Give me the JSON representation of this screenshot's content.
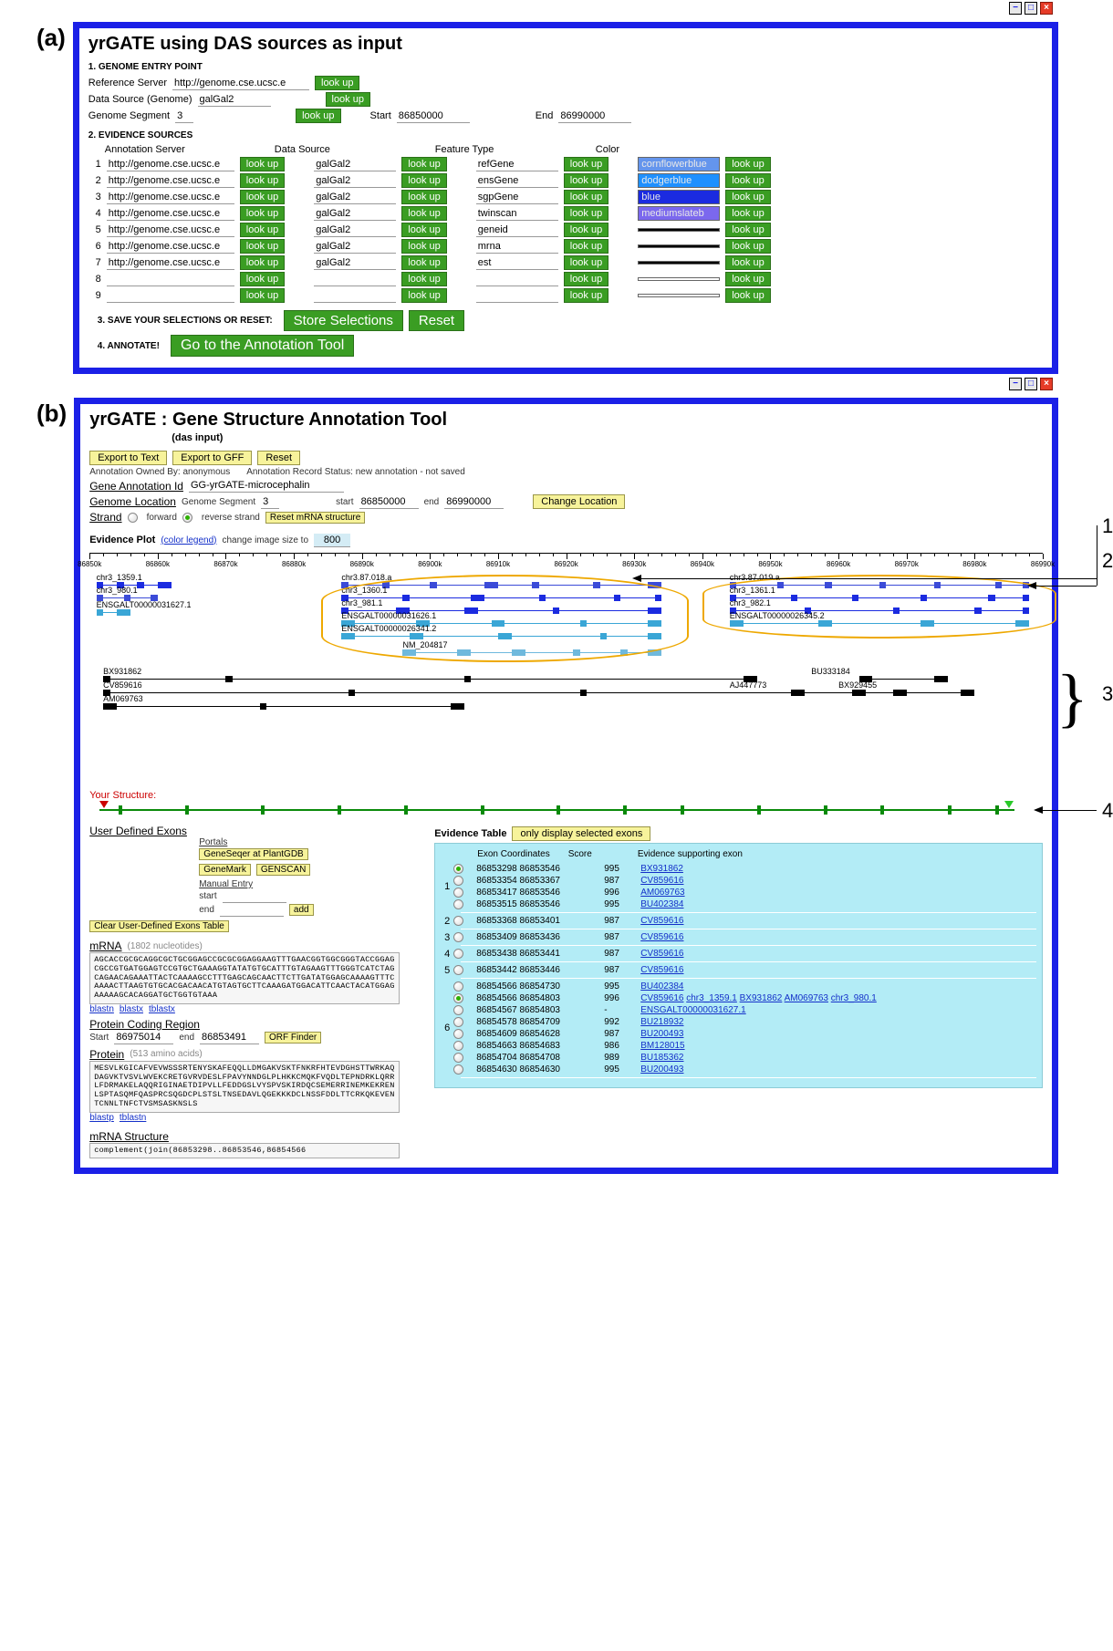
{
  "a": {
    "title": "yrGATE using DAS sources as input",
    "step1": "1. GENOME ENTRY POINT",
    "refServerLabel": "Reference Server",
    "refServer": "http://genome.cse.ucsc.e",
    "dataSourceLabel": "Data Source (Genome)",
    "dataSource": "galGal2",
    "genomeSegLabel": "Genome Segment",
    "genomeSeg": "3",
    "startLabel": "Start",
    "start": "86850000",
    "endLabel": "End",
    "end": "86990000",
    "step2": "2. EVIDENCE SOURCES",
    "col1": "Annotation Server",
    "col2": "Data Source",
    "col3": "Feature Type",
    "col4": "Color",
    "lookup": "look up",
    "rows": [
      {
        "n": "1",
        "srv": "http://genome.cse.ucsc.e",
        "ds": "galGal2",
        "ft": "refGene",
        "color": "cornflowerblue",
        "bg": "#6495ed"
      },
      {
        "n": "2",
        "srv": "http://genome.cse.ucsc.e",
        "ds": "galGal2",
        "ft": "ensGene",
        "color": "dodgerblue",
        "bg": "#1e90ff"
      },
      {
        "n": "3",
        "srv": "http://genome.cse.ucsc.e",
        "ds": "galGal2",
        "ft": "sgpGene",
        "color": "blue",
        "bg": "#1b2be0"
      },
      {
        "n": "4",
        "srv": "http://genome.cse.ucsc.e",
        "ds": "galGal2",
        "ft": "twinscan",
        "color": "mediumslateb",
        "bg": "#7b68ee"
      },
      {
        "n": "5",
        "srv": "http://genome.cse.ucsc.e",
        "ds": "galGal2",
        "ft": "geneid",
        "color": "",
        "bg": "#000000"
      },
      {
        "n": "6",
        "srv": "http://genome.cse.ucsc.e",
        "ds": "galGal2",
        "ft": "mrna",
        "color": "",
        "bg": "#000000"
      },
      {
        "n": "7",
        "srv": "http://genome.cse.ucsc.e",
        "ds": "galGal2",
        "ft": "est",
        "color": "",
        "bg": "#000000"
      },
      {
        "n": "8",
        "srv": "",
        "ds": "",
        "ft": "",
        "color": "",
        "bg": "#ffffff"
      },
      {
        "n": "9",
        "srv": "",
        "ds": "",
        "ft": "",
        "color": "",
        "bg": "#ffffff"
      }
    ],
    "step3": "3. SAVE YOUR SELECTIONS OR RESET:",
    "store": "Store Selections",
    "reset": "Reset",
    "step4": "4. ANNOTATE!",
    "gobtn": "Go to the Annotation Tool"
  },
  "b": {
    "title": "yrGATE : Gene Structure Annotation Tool",
    "subtitle": "(das input)",
    "exportText": "Export to Text",
    "exportGFF": "Export to GFF",
    "reset": "Reset",
    "owned": "Annotation Owned By: anonymous",
    "recStatus": "Annotation Record Status: new annotation - not saved",
    "geneIdLabel": "Gene Annotation Id",
    "geneId": "GG-yrGATE-microcephalin",
    "genLocLabel": "Genome Location",
    "genSegLabel": "Genome Segment",
    "genSeg": "3",
    "startLabel": "start",
    "start": "86850000",
    "endLabel": "end",
    "end": "86990000",
    "changeLoc": "Change Location",
    "strand": "Strand",
    "forward": "forward",
    "reverse": "reverse strand",
    "resetMRNA": "Reset mRNA structure",
    "evPlot": "Evidence Plot",
    "colorLegend": "(color legend)",
    "imgSize": "change image size to",
    "imgSizeVal": "800",
    "ticks": [
      "86850k",
      "86860k",
      "86870k",
      "86880k",
      "86890k",
      "86900k",
      "86910k",
      "86920k",
      "86930k",
      "86940k",
      "86950k",
      "86960k",
      "86970k",
      "86980k",
      "86990k"
    ],
    "track_labels": {
      "t1": "chr3_1359.1",
      "t2": "chr3_980.1",
      "t3": "ENSGALT00000031627.1",
      "t4": "chr3.87.018.a",
      "t5": "chr3_1360.1",
      "t6": "chr3_981.1",
      "t7": "ENSGALT00000031626.1",
      "t8": "ENSGALT00000026341.2",
      "t9": "NM_204817",
      "t10": "chr3.87.019.a",
      "t11": "chr3_1361.1",
      "t12": "chr3_982.1",
      "t13": "ENSGALT00000026345.2",
      "e1": "BX931862",
      "e2": "CV859616",
      "e3": "AM069763",
      "e4": "BU333184",
      "e5": "AJ447773",
      "e6": "BX929455"
    },
    "yourStructure": "Your Structure:",
    "udex": "User Defined Exons",
    "portals": "Portals",
    "geneSeqer": "GeneSeqer at PlantGDB",
    "geneMark": "GeneMark",
    "genscan": "GENSCAN",
    "manualEntry": "Manual Entry",
    "meStart": "start",
    "meEnd": "end",
    "add": "add",
    "clearUDE": "Clear User-Defined Exons Table",
    "mRNAlabel": "mRNA",
    "mRNAcount": "(1802 nucleotides)",
    "mRNAseq": "AGCACCGCGCAGGCGCTGCGGAGCCGCGCGGAGGAAGTTTGAACGGTGGCGGGTACCGGAGCGCCGTGATGGAGTCCGTGCTGAAAGGTATATGTGCATTTGTAGAAGTTTGGGTCATCTAGCAGAACAGAAATTACTCAAAAGCCTTTGAGCAGCAACTTCTTGATATGGAGCAAAAGTTTCAAAACTTAAGTGTGCACGACAACATGTAGTGCTTCAAAGATGGACATTCAACTACATGGAGAAAAAGCACAGGATGCTGGTGTAAA",
    "blastn": "blastn",
    "blastx": "blastx",
    "tblastx": "tblastx",
    "pcr": "Protein Coding Region",
    "pcrStart": "Start",
    "pcrStartV": "86975014",
    "pcrEnd": "end",
    "pcrEndV": "86853491",
    "orf": "ORF Finder",
    "proteinLabel": "Protein",
    "proteinCount": "(513 amino acids)",
    "proteinSeq": "MESVLKGICAFVEVWSSSRTENYSKAFEQQLLDMGAKVSKTFNKRFHTEVDGHSTTWRKAQDAGVKTVSVLWVEKCRETGVRVDESLFPAVYNNDGLPLHKKCMQKFVQDLTEPNDRKLQRRLFDRMAKELAQQRIGINAETDIPVLLFEDDGSLVYSPVSKIRDQCSEMERRINEMKEKRENLSPTASQMFQASPRCSQGDCPLSTSLTNSEDAVLQGEKKKDCLNSSFDDLTTCRKQKEVENTCNNLTNFCTVSMSASKNSLS",
    "blastp": "blastp",
    "tblastn": "tblastn",
    "mrnaStruct": "mRNA Structure",
    "mrnaStructV": "complement(join(86853298..86853546,86854566",
    "evTable": "Evidence Table",
    "onlySel": "only display selected exons",
    "evCols": {
      "c1": "Exon Coordinates",
      "c2": "Score",
      "c3": "Evidence supporting exon"
    },
    "evRows": [
      {
        "g": "1",
        "items": [
          {
            "sel": true,
            "coords": "86853298 86853546",
            "score": "995",
            "links": [
              "BX931862"
            ]
          },
          {
            "sel": false,
            "coords": "86853354 86853367",
            "score": "987",
            "links": [
              "CV859616"
            ]
          },
          {
            "sel": false,
            "coords": "86853417 86853546",
            "score": "996",
            "links": [
              "AM069763"
            ]
          },
          {
            "sel": false,
            "coords": "86853515 86853546",
            "score": "995",
            "links": [
              "BU402384"
            ]
          }
        ]
      },
      {
        "g": "2",
        "items": [
          {
            "sel": false,
            "coords": "86853368 86853401",
            "score": "987",
            "links": [
              "CV859616"
            ]
          }
        ]
      },
      {
        "g": "3",
        "items": [
          {
            "sel": false,
            "coords": "86853409 86853436",
            "score": "987",
            "links": [
              "CV859616"
            ]
          }
        ]
      },
      {
        "g": "4",
        "items": [
          {
            "sel": false,
            "coords": "86853438 86853441",
            "score": "987",
            "links": [
              "CV859616"
            ]
          }
        ]
      },
      {
        "g": "5",
        "items": [
          {
            "sel": false,
            "coords": "86853442 86853446",
            "score": "987",
            "links": [
              "CV859616"
            ]
          }
        ]
      },
      {
        "g": "6",
        "items": [
          {
            "sel": false,
            "coords": "86854566 86854730",
            "score": "995",
            "links": [
              "BU402384"
            ]
          },
          {
            "sel": true,
            "coords": "86854566 86854803",
            "score": "996",
            "links": [
              "CV859616",
              "chr3_1359.1",
              "BX931862",
              "AM069763",
              "chr3_980.1"
            ]
          },
          {
            "sel": false,
            "coords": "86854567 86854803",
            "score": "-",
            "links": [
              "ENSGALT00000031627.1"
            ]
          },
          {
            "sel": false,
            "coords": "86854578 86854709",
            "score": "992",
            "links": [
              "BU218932"
            ]
          },
          {
            "sel": false,
            "coords": "86854609 86854628",
            "score": "987",
            "links": [
              "BU200493"
            ]
          },
          {
            "sel": false,
            "coords": "86854663 86854683",
            "score": "986",
            "links": [
              "BM128015"
            ]
          },
          {
            "sel": false,
            "coords": "86854704 86854708",
            "score": "989",
            "links": [
              "BU185362"
            ]
          },
          {
            "sel": false,
            "coords": "86854630 86854630",
            "score": "995",
            "links": [
              "BU200493"
            ]
          }
        ]
      }
    ]
  },
  "annot": {
    "n1": "1",
    "n2": "2",
    "n3": "3",
    "n4": "4"
  }
}
